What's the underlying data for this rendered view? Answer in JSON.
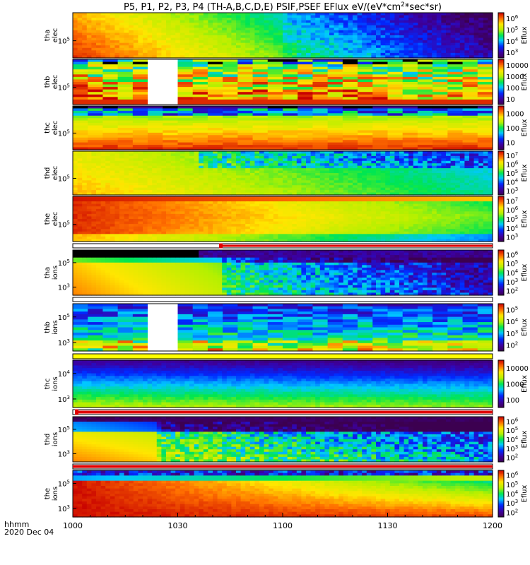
{
  "chart_data": {
    "type": "heatmap",
    "title": "P5, P1, P2, P3, P4 (TH-A,B,C,D,E) PSIF,PSEF EFlux eV/(eV*cm^2*sec*sr)",
    "title_parts": {
      "prefix": "P5, P1, P2, P3, P4 (TH-A,B,C,D,E) PSIF,PSEF EFlux eV/(eV*cm",
      "sup": "2",
      "suffix": "*sec*sr)"
    },
    "x_axis": {
      "label_top": "hhmm",
      "label_bottom": "2020 Dec 04",
      "ticks": [
        "1000",
        "1030",
        "1100",
        "1130",
        "1200"
      ]
    },
    "colorbar_label": "Eflux",
    "panels": [
      {
        "label": [
          "tha",
          "elec"
        ],
        "y_tick": "10^5",
        "cb_ticks": [
          "10^6",
          "10^5",
          "10^4",
          "10^3"
        ],
        "pattern": "tha_elec"
      },
      {
        "label": [
          "thb",
          "elec"
        ],
        "y_tick": "10^5",
        "cb_ticks": [
          "10000",
          "1000",
          "100",
          "10"
        ],
        "pattern": "thb_elec"
      },
      {
        "label": [
          "thc",
          "elec"
        ],
        "y_tick": "10^5",
        "cb_ticks": [
          "1000",
          "100",
          "10"
        ],
        "pattern": "thc_elec"
      },
      {
        "label": [
          "thd",
          "elec"
        ],
        "y_tick": "10^5",
        "cb_ticks": [
          "10^7",
          "10^6",
          "10^5",
          "10^4",
          "10^3"
        ],
        "pattern": "thd_elec"
      },
      {
        "label": [
          "the",
          "elec"
        ],
        "y_tick": "10^5",
        "cb_ticks": [
          "10^7",
          "10^6",
          "10^5",
          "10^4",
          "10^3"
        ],
        "pattern": "the_elec"
      },
      {
        "label": [
          "tha",
          "ions"
        ],
        "y_ticks": [
          "10^5",
          "10^3"
        ],
        "cb_ticks": [
          "10^6",
          "10^5",
          "10^4",
          "10^3",
          "10^2"
        ],
        "pattern": "tha_ions"
      },
      {
        "label": [
          "thb",
          "ions"
        ],
        "y_ticks": [
          "10^5",
          "10^3"
        ],
        "cb_ticks": [
          "10^5",
          "10^4",
          "10^3",
          "10^2"
        ],
        "pattern": "thb_ions"
      },
      {
        "label": [
          "thc",
          "ions"
        ],
        "y_ticks": [
          "10^4",
          "10^3"
        ],
        "cb_ticks": [
          "10000",
          "1000",
          "100"
        ],
        "pattern": "thc_ions"
      },
      {
        "label": [
          "thd",
          "ions"
        ],
        "y_ticks": [
          "10^5",
          "10^3"
        ],
        "cb_ticks": [
          "10^6",
          "10^5",
          "10^4",
          "10^3",
          "10^2"
        ],
        "pattern": "thd_ions"
      },
      {
        "label": [
          "the",
          "ions"
        ],
        "y_ticks": [
          "10^5",
          "10^3"
        ],
        "cb_ticks": [
          "10^6",
          "10^5",
          "10^4",
          "10^3",
          "10^2"
        ],
        "pattern": "the_ions"
      }
    ]
  }
}
